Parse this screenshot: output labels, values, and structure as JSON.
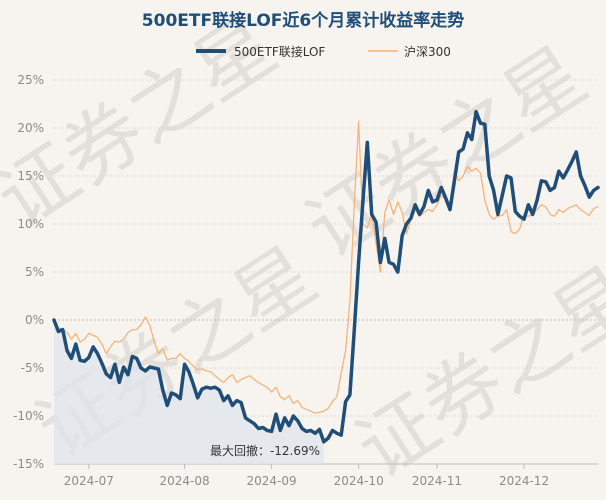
{
  "chart_data": {
    "type": "line",
    "title": "500ETF联接LOF近6个月累计收益率走势",
    "xlabel": "",
    "ylabel": "",
    "ylim": [
      -15,
      25
    ],
    "yticks": [
      -15,
      -10,
      -5,
      0,
      5,
      10,
      15,
      20,
      25
    ],
    "ytick_labels": [
      "-15%",
      "-10%",
      "-5%",
      "0%",
      "5%",
      "10%",
      "15%",
      "20%",
      "25%"
    ],
    "xtick_labels": [
      "2024-07",
      "2024-08",
      "2024-09",
      "2024-10",
      "2024-11",
      "2024-12"
    ],
    "xtick_index": [
      8,
      30,
      50,
      70,
      88,
      108
    ],
    "grid": true,
    "legend_position": "top-center",
    "series": [
      {
        "name": "500ETF联接LOF",
        "color": "#1f4e79",
        "values": [
          0,
          -1.2,
          -1.0,
          -3.2,
          -4.0,
          -2.5,
          -4.2,
          -4.3,
          -3.9,
          -2.8,
          -3.5,
          -4.5,
          -5.6,
          -6.0,
          -4.6,
          -6.5,
          -4.9,
          -5.7,
          -3.8,
          -4.0,
          -5.0,
          -5.3,
          -4.9,
          -5.0,
          -5.1,
          -7.3,
          -8.9,
          -7.6,
          -7.8,
          -8.2,
          -4.6,
          -5.4,
          -6.7,
          -8.1,
          -7.2,
          -7.0,
          -7.1,
          -7.0,
          -7.3,
          -8.4,
          -7.9,
          -8.9,
          -8.4,
          -8.6,
          -10.2,
          -10.5,
          -10.8,
          -11.3,
          -11.2,
          -11.5,
          -11.6,
          -9.8,
          -11.5,
          -10.2,
          -11.0,
          -10.0,
          -10.5,
          -11.3,
          -11.6,
          -11.5,
          -11.8,
          -11.4,
          -12.69,
          -12.3,
          -11.5,
          -11.8,
          -12.0,
          -8.5,
          -7.8,
          -1.0,
          6.0,
          12.5,
          18.5,
          11.0,
          10.2,
          6.0,
          8.5,
          6.0,
          5.8,
          5.0,
          8.8,
          10.0,
          10.6,
          12.0,
          11.0,
          11.8,
          13.5,
          12.3,
          12.5,
          13.8,
          12.7,
          11.5,
          14.5,
          17.5,
          17.8,
          19.5,
          18.8,
          21.7,
          20.5,
          20.4,
          15.0,
          13.5,
          11.0,
          13.0,
          15.0,
          14.8,
          11.3,
          10.8,
          10.5,
          12.0,
          11.0,
          12.5,
          14.5,
          14.4,
          13.5,
          13.8,
          15.5,
          14.8,
          15.6,
          16.5,
          17.5,
          15.0,
          14.0,
          12.8,
          13.5,
          13.8
        ]
      },
      {
        "name": "沪深300",
        "color": "#f5b479",
        "values": [
          0,
          -0.8,
          -1.0,
          -1.3,
          -2.0,
          -1.4,
          -2.3,
          -2.0,
          -1.4,
          -1.6,
          -1.8,
          -2.5,
          -3.5,
          -2.8,
          -2.2,
          -2.3,
          -2.0,
          -1.3,
          -1.0,
          -1.0,
          -0.5,
          0.3,
          -0.5,
          -2.2,
          -3.5,
          -3.0,
          -4.2,
          -4.0,
          -4.0,
          -3.5,
          -4.0,
          -4.3,
          -4.8,
          -5.2,
          -5.1,
          -5.3,
          -5.4,
          -5.8,
          -6.2,
          -6.5,
          -6.0,
          -5.7,
          -6.5,
          -6.2,
          -6.0,
          -5.8,
          -6.2,
          -6.5,
          -6.8,
          -7.0,
          -7.5,
          -7.0,
          -8.0,
          -8.3,
          -7.9,
          -8.7,
          -8.4,
          -9.1,
          -9.3,
          -9.5,
          -9.7,
          -9.6,
          -9.5,
          -9.2,
          -8.5,
          -8.0,
          -5.5,
          -3.2,
          2.0,
          12.0,
          20.7,
          10.0,
          9.6,
          11.0,
          8.0,
          5.0,
          11.2,
          12.5,
          11.0,
          12.3,
          11.2,
          9.0,
          10.5,
          11.5,
          10.8,
          11.2,
          11.5,
          11.3,
          12.0,
          13.0,
          12.5,
          12.0,
          15.5,
          14.5,
          15.0,
          16.0,
          15.5,
          15.8,
          15.3,
          12.5,
          11.0,
          10.5,
          10.8,
          10.9,
          11.5,
          9.2,
          9.0,
          9.5,
          11.0,
          10.8,
          11.0,
          11.5,
          12.0,
          11.8,
          11.0,
          10.8,
          11.5,
          11.2,
          11.6,
          11.8,
          12.0,
          11.5,
          11.2,
          10.9,
          11.6,
          11.8
        ]
      }
    ],
    "annotation": "最大回撤：-12.69%",
    "drawdown_window": {
      "start_index": 0,
      "end_index": 62
    }
  },
  "watermark": "证券之星"
}
